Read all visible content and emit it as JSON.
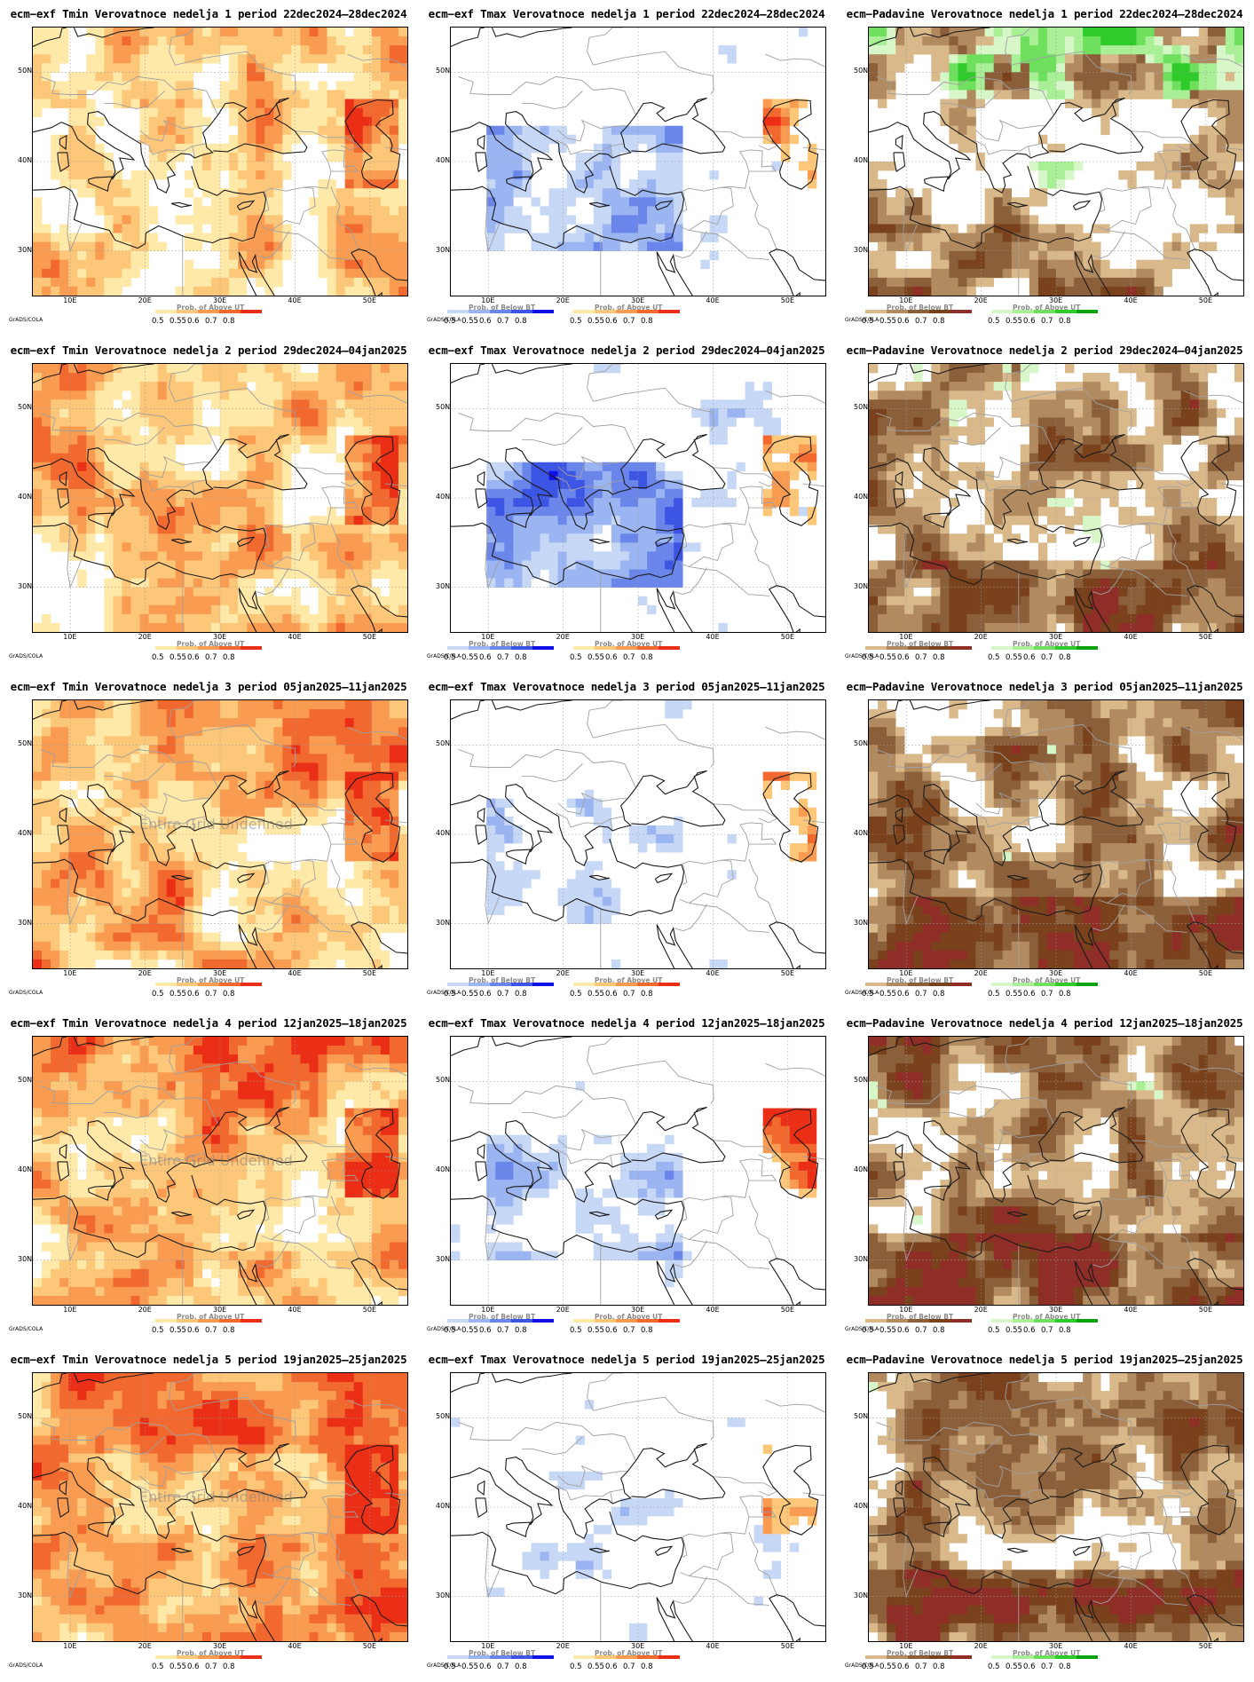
{
  "rows": [
    {
      "week": 1,
      "period": "22dec2024–28dec2024"
    },
    {
      "week": 2,
      "period": "29dec2024–04jan2025"
    },
    {
      "week": 3,
      "period": "05jan2025–11jan2025"
    },
    {
      "week": 4,
      "period": "12jan2025–18jan2025"
    },
    {
      "week": 5,
      "period": "19jan2025–25jan2025"
    }
  ],
  "titles": [
    [
      "ecm−exf Tmin Verovatnoce nedelja 1 period 22dec2024–28dec2024",
      "ecm−exf Tmax Verovatnoce nedelja 1 period 22dec2024–28dec2024",
      "ecm−Padavine Verovatnoce nedelja 1 period 22dec2024–28dec2024"
    ],
    [
      "ecm−exf Tmin Verovatnoce nedelja 2 period 29dec2024–04jan2025",
      "ecm−exf Tmax Verovatnoce nedelja 2 period 29dec2024–04jan2025",
      "ecm−Padavine Verovatnoce nedelja 2 period 29dec2024–04jan2025"
    ],
    [
      "ecm−exf Tmin Verovatnoce nedelja 3 period 05jan2025–11jan2025",
      "ecm−exf Tmax Verovatnoce nedelja 3 period 05jan2025–11jan2025",
      "ecm−Padavine Verovatnoce nedelja 3 period 05jan2025–11jan2025"
    ],
    [
      "ecm−exf Tmin Verovatnoce nedelja 4 period 12jan2025–18jan2025",
      "ecm−exf Tmax Verovatnoce nedelja 4 period 12jan2025–18jan2025",
      "ecm−Padavine Verovatnoce nedelja 4 period 12jan2025–18jan2025"
    ],
    [
      "ecm−exf Tmin Verovatnoce nedelja 5 period 19jan2025–25jan2025",
      "ecm−exf Tmax Verovatnoce nedelja 5 period 19jan2025–25jan2025",
      "ecm−Padavine Verovatnoce nedelja 5 period 19jan2025–25jan2025"
    ]
  ],
  "lat_labels": [
    "50N",
    "40N",
    "30N"
  ],
  "lon_labels": [
    "10E",
    "20E",
    "30E",
    "40E",
    "50E"
  ],
  "legend": {
    "below_caption": "Prob. of Below BT",
    "above_caption": "Prob. of Above UT",
    "values": [
      "0.5",
      "0.55",
      "0.6",
      "0.7",
      "0.8"
    ],
    "grads_label": "GrADS/COLA"
  },
  "undefined_text": "Entire Grid Undefined",
  "palettes": {
    "warm": [
      "#ffe9a8",
      "#fdc77a",
      "#f99c52",
      "#f2692f",
      "#ea2f16"
    ],
    "blue": [
      "#c7d8f7",
      "#9bb4f2",
      "#6a86ea",
      "#3d55e4",
      "#1010e6"
    ],
    "brown": [
      "#d9b88a",
      "#b28a5f",
      "#8a5f3a",
      "#7a421c",
      "#8f2d27"
    ],
    "green": [
      "#d7f7c8",
      "#a8ef95",
      "#6fe05d",
      "#2ecb2a",
      "#0aa20a"
    ]
  },
  "maps": [
    {
      "kind": "warm",
      "base": 0.45,
      "hot": 0.9
    },
    {
      "kind": "blue",
      "base": 0.15,
      "hot": 0.6
    },
    {
      "kind": "precip",
      "base": 0.5,
      "wet": 0.55
    },
    {
      "kind": "warm",
      "base": 0.55,
      "hot": 0.85
    },
    {
      "kind": "blue",
      "base": 0.2,
      "hot": 0.7
    },
    {
      "kind": "precip",
      "base": 0.75,
      "wet": 0.25
    },
    {
      "kind": "warm",
      "base": 0.65,
      "hot": 0.7
    },
    {
      "kind": "blue",
      "base": 0.1,
      "hot": 0.3
    },
    {
      "kind": "precip",
      "base": 0.85,
      "wet": 0.2
    },
    {
      "kind": "warm",
      "base": 0.72,
      "hot": 0.8
    },
    {
      "kind": "blue",
      "base": 0.12,
      "hot": 0.35
    },
    {
      "kind": "precip",
      "base": 0.85,
      "wet": 0.22
    },
    {
      "kind": "warm",
      "base": 0.85,
      "hot": 0.75
    },
    {
      "kind": "blue",
      "base": 0.08,
      "hot": 0.25
    },
    {
      "kind": "precip",
      "base": 0.85,
      "wet": 0.18
    }
  ]
}
